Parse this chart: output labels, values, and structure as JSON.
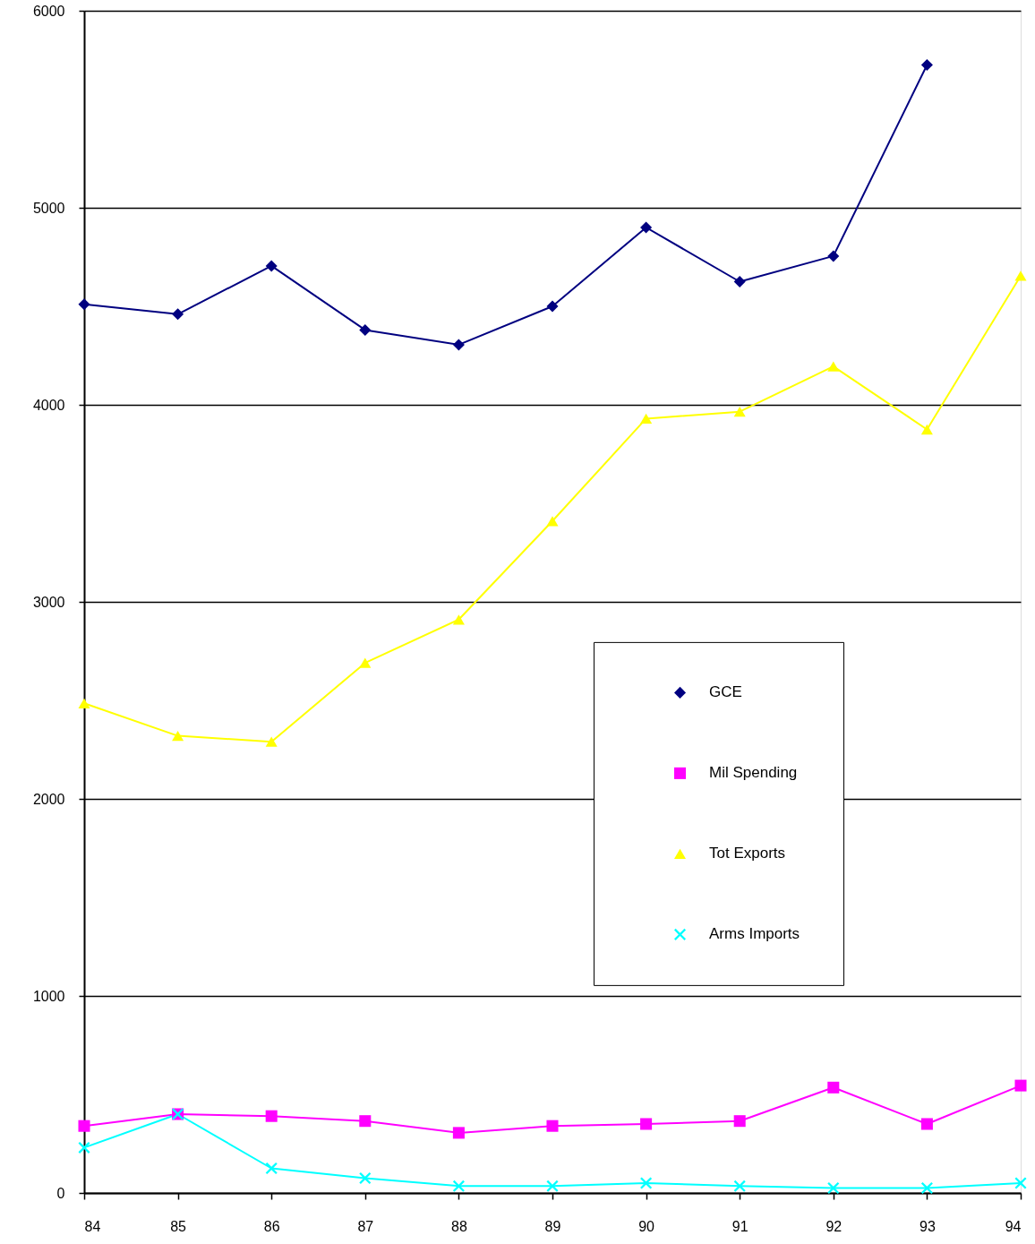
{
  "chart_data": {
    "type": "line",
    "categories": [
      "84",
      "85",
      "86",
      "87",
      "88",
      "89",
      "90",
      "91",
      "92",
      "93",
      "94"
    ],
    "ylim": [
      0,
      6000
    ],
    "yticks": [
      0,
      1000,
      2000,
      3000,
      4000,
      5000,
      6000
    ],
    "grid": "y",
    "legend": "right",
    "line_style": "solid",
    "series": [
      {
        "name": "GCE",
        "color": "#000080",
        "marker": "diamond",
        "values": [
          4510,
          4460,
          4705,
          4380,
          4305,
          4500,
          4900,
          4625,
          4755,
          5725,
          null
        ]
      },
      {
        "name": "Mil Spending",
        "color": "#ff00ff",
        "marker": "square",
        "values": [
          340,
          400,
          390,
          365,
          305,
          340,
          350,
          365,
          535,
          350,
          545
        ]
      },
      {
        "name": "Tot Exports",
        "color": "#ffff00",
        "marker": "triangle",
        "values": [
          2485,
          2320,
          2290,
          2690,
          2910,
          3410,
          3930,
          3965,
          4195,
          3875,
          4655
        ]
      },
      {
        "name": "Arms Imports",
        "color": "#00ffff",
        "marker": "cross",
        "values": [
          230,
          400,
          125,
          75,
          35,
          35,
          50,
          35,
          25,
          25,
          50
        ]
      }
    ]
  }
}
